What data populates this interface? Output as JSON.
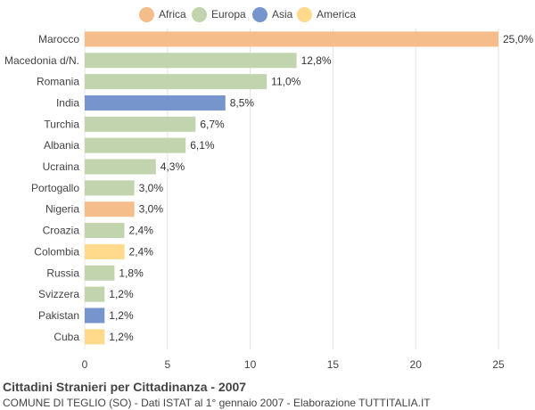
{
  "legend": [
    {
      "name": "Africa",
      "color": "#f4bd8a"
    },
    {
      "name": "Europa",
      "color": "#c2d4ad"
    },
    {
      "name": "Asia",
      "color": "#7595cc"
    },
    {
      "name": "America",
      "color": "#ffd98c"
    }
  ],
  "title": "Cittadini Stranieri per Cittadinanza - 2007",
  "subtitle": "COMUNE DI TEGLIO (SO) - Dati ISTAT al 1° gennaio 2007 - Elaborazione TUTTITALIA.IT",
  "chart_data": {
    "type": "bar",
    "orientation": "horizontal",
    "title": "Cittadini Stranieri per Cittadinanza - 2007",
    "xlim": [
      0,
      25
    ],
    "xticks": [
      0,
      5,
      10,
      15,
      20,
      25
    ],
    "grid": true,
    "legend_position": "top-center",
    "categories": [
      "Marocco",
      "Macedonia d/N.",
      "Romania",
      "India",
      "Turchia",
      "Albania",
      "Ucraina",
      "Portogallo",
      "Nigeria",
      "Croazia",
      "Colombia",
      "Russia",
      "Svizzera",
      "Pakistan",
      "Cuba"
    ],
    "values": [
      25.0,
      12.8,
      11.0,
      8.5,
      6.7,
      6.1,
      4.3,
      3.0,
      3.0,
      2.4,
      2.4,
      1.8,
      1.2,
      1.2,
      1.2
    ],
    "labels": [
      "25,0%",
      "12,8%",
      "11,0%",
      "8,5%",
      "6,7%",
      "6,1%",
      "4,3%",
      "3,0%",
      "3,0%",
      "2,4%",
      "2,4%",
      "1,8%",
      "1,2%",
      "1,2%",
      "1,2%"
    ],
    "groups": [
      "Africa",
      "Europa",
      "Europa",
      "Asia",
      "Europa",
      "Europa",
      "Europa",
      "Europa",
      "Africa",
      "Europa",
      "America",
      "Europa",
      "Europa",
      "Asia",
      "America"
    ]
  }
}
